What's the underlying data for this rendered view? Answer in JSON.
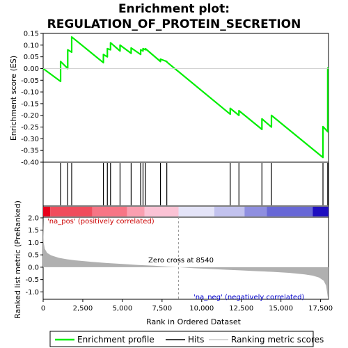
{
  "chart_data": {
    "type": "line",
    "title_lines": [
      "Enrichment plot:",
      "REGULATION_OF_PROTEIN_SECRETION"
    ],
    "xlabel": "Rank in Ordered Dataset",
    "ylabel_top": "Enrichment score (ES)",
    "ylabel_bottom": "Ranked list metric (PreRanked)",
    "xlim": [
      0,
      18000
    ],
    "x_ticks": [
      0,
      2500,
      5000,
      7500,
      10000,
      12500,
      15000,
      17500
    ],
    "x_tick_labels": [
      "0",
      "2,500",
      "5,000",
      "7,500",
      "10,000",
      "12,500",
      "15,000",
      "17,500"
    ],
    "es_ylim": [
      -0.4,
      0.15
    ],
    "es_ticks": [
      0.15,
      0.1,
      0.05,
      0.0,
      -0.05,
      -0.1,
      -0.15,
      -0.2,
      -0.25,
      -0.3,
      -0.35,
      -0.4
    ],
    "es_tick_labels": [
      "0.15",
      "0.10",
      "0.05",
      "0.00",
      "-0.05",
      "-0.10",
      "-0.15",
      "-0.20",
      "-0.25",
      "-0.30",
      "-0.35",
      "-0.40"
    ],
    "metric_ylim": [
      -1.3,
      2.0
    ],
    "metric_ticks": [
      2.0,
      1.5,
      1.0,
      0.5,
      0.0,
      -0.5,
      -1.0
    ],
    "metric_tick_labels": [
      "2.0",
      "1.5",
      "1.0",
      "0.5",
      "0.0",
      "-0.5",
      "-1.0"
    ],
    "enrichment_profile": {
      "x": [
        0,
        1100,
        1100,
        1550,
        1550,
        1800,
        1800,
        3800,
        3800,
        4050,
        4050,
        4250,
        4250,
        4850,
        4850,
        5550,
        5550,
        6150,
        6150,
        6300,
        6300,
        6450,
        6450,
        7400,
        7400,
        7800,
        7800,
        11800,
        11800,
        12350,
        12350,
        13800,
        13800,
        14400,
        14400,
        17650,
        17650,
        17950,
        17950,
        18000
      ],
      "y": [
        0.0,
        -0.055,
        0.03,
        0.0,
        0.08,
        0.07,
        0.135,
        0.025,
        0.06,
        0.05,
        0.085,
        0.08,
        0.11,
        0.075,
        0.1,
        0.065,
        0.088,
        0.06,
        0.08,
        0.075,
        0.085,
        0.08,
        0.085,
        0.03,
        0.04,
        0.03,
        0.028,
        -0.195,
        -0.17,
        -0.2,
        -0.18,
        -0.26,
        -0.215,
        -0.25,
        -0.2,
        -0.38,
        -0.248,
        -0.27,
        0.002,
        0.0
      ]
    },
    "hits": [
      1100,
      1550,
      1800,
      3800,
      4050,
      4250,
      4850,
      5550,
      6150,
      6300,
      6450,
      7400,
      7800,
      11800,
      12350,
      13800,
      14400,
      17650,
      17950
    ],
    "zero_cross": 8540,
    "zero_cross_label": "Zero cross at 8540",
    "pos_label": "'na_pos' (positively correlated)",
    "neg_label": "'na_neg' (negatively correlated)",
    "metric_curve": {
      "x": [
        0,
        30,
        100,
        250,
        500,
        1000,
        1500,
        2000,
        3000,
        4000,
        5000,
        6000,
        7000,
        8000,
        8540,
        9500,
        10500,
        11500,
        12500,
        13500,
        14500,
        15500,
        16500,
        17000,
        17400,
        17700,
        17850,
        17950,
        18000
      ],
      "y": [
        1.9,
        1.0,
        0.75,
        0.58,
        0.48,
        0.38,
        0.32,
        0.28,
        0.22,
        0.17,
        0.13,
        0.09,
        0.06,
        0.02,
        0.0,
        -0.04,
        -0.07,
        -0.1,
        -0.13,
        -0.16,
        -0.19,
        -0.23,
        -0.29,
        -0.34,
        -0.42,
        -0.55,
        -0.75,
        -1.2,
        -1.3
      ]
    },
    "heatmap_bands": [
      {
        "x0": 0,
        "x1": 450,
        "color": "#e8001a"
      },
      {
        "x0": 450,
        "x1": 3100,
        "color": "#f04c5c"
      },
      {
        "x0": 3100,
        "x1": 5300,
        "color": "#f77585"
      },
      {
        "x0": 5300,
        "x1": 6400,
        "color": "#fa9fb0"
      },
      {
        "x0": 6400,
        "x1": 8540,
        "color": "#fbc3d5"
      },
      {
        "x0": 8540,
        "x1": 10800,
        "color": "#e4e4f8"
      },
      {
        "x0": 10800,
        "x1": 12700,
        "color": "#c2c2ee"
      },
      {
        "x0": 12700,
        "x1": 14100,
        "color": "#8f8fe0"
      },
      {
        "x0": 14100,
        "x1": 17000,
        "color": "#6868d6"
      },
      {
        "x0": 17000,
        "x1": 18000,
        "color": "#1e0ec0"
      }
    ],
    "legend": [
      "Enrichment profile",
      "Hits",
      "Ranking metric scores"
    ],
    "colors": {
      "profile": "#00ee00",
      "hits": "#000000",
      "metric": "#b0b0b0",
      "pos_label": "#cc0000",
      "neg_label": "#0000cc",
      "zero_line": "#999999"
    }
  }
}
